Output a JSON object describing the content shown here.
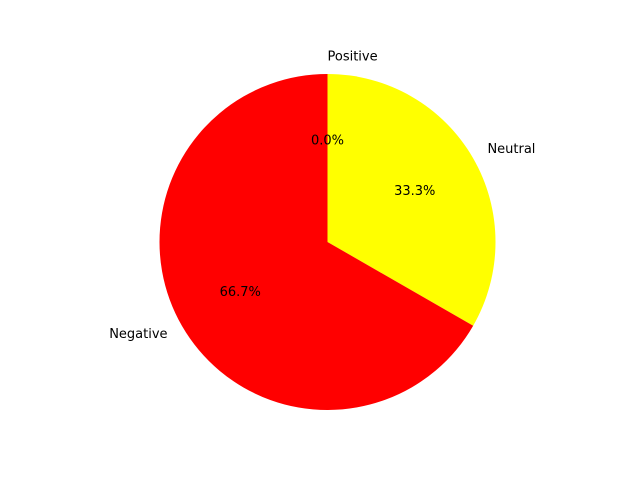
{
  "chart_data": {
    "type": "pie",
    "categories": [
      "Positive",
      "Neutral",
      "Negative"
    ],
    "values": [
      0.0,
      33.3,
      66.7
    ],
    "percent_labels": [
      "0.0%",
      "33.3%",
      "66.7%"
    ],
    "colors": [
      "#00ff00",
      "#ffff00",
      "#ff0000"
    ],
    "start_angle_deg": 90,
    "direction": "clockwise",
    "legend": "none"
  }
}
